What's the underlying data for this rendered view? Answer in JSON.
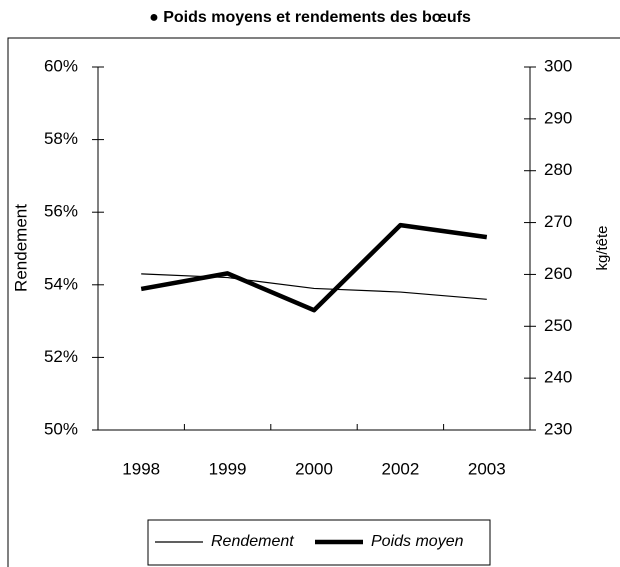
{
  "chart_data": {
    "type": "line",
    "title": "● Poids moyens et rendements des bœufs",
    "y_label": "Rendement",
    "y2_label": "kg/tête",
    "categories": [
      "1998",
      "1999",
      "2000",
      "2002",
      "2003"
    ],
    "series": [
      {
        "name": "Rendement",
        "color": "#000000",
        "width": 1.2,
        "values": [
          54.3,
          54.2,
          53.9,
          53.8,
          53.6
        ]
      },
      {
        "name": "Poids moyen",
        "color": "#000000",
        "width": 4.5,
        "axis": "y2",
        "values": [
          257.2,
          260.2,
          253.1,
          269.5,
          267.2
        ]
      }
    ],
    "ylim": [
      50,
      60
    ],
    "yticks": [
      {
        "value": 50,
        "label": "50%"
      },
      {
        "value": 52,
        "label": "52%"
      },
      {
        "value": 54,
        "label": "54%"
      },
      {
        "value": 56,
        "label": "56%"
      },
      {
        "value": 58,
        "label": "58%"
      },
      {
        "value": 60,
        "label": "60%"
      }
    ],
    "y2lim": [
      230,
      300
    ],
    "y2ticks": [
      230,
      240,
      250,
      260,
      270,
      280,
      290,
      300
    ],
    "grid": false
  }
}
